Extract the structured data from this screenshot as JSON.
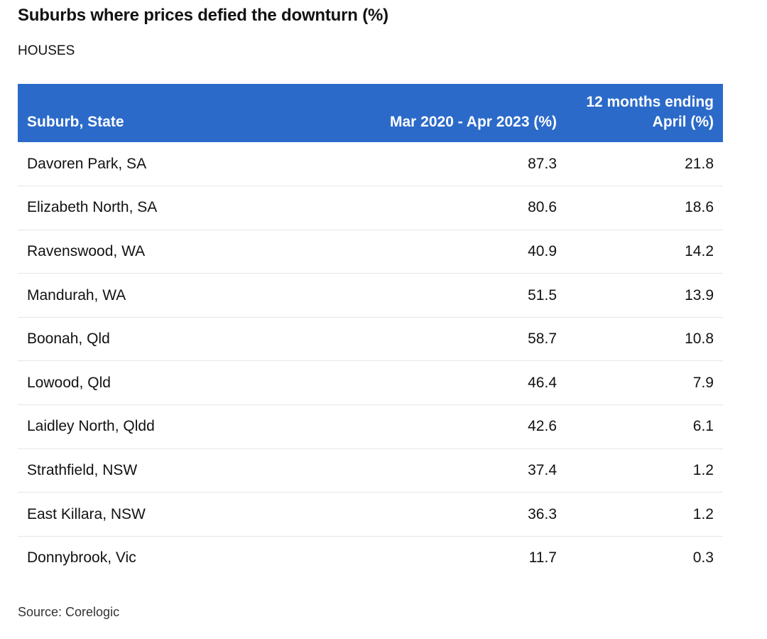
{
  "title": "Suburbs where prices defied the downturn (%)",
  "subtitle": "HOUSES",
  "source": "Source: Corelogic",
  "colors": {
    "header_bg": "#2b6ac9",
    "header_text": "#ffffff",
    "row_divider": "#e6e6e6"
  },
  "chart_data": {
    "type": "table",
    "title": "Suburbs where prices defied the downturn (%)",
    "subtitle": "HOUSES",
    "columns": [
      "Suburb, State",
      "Mar 2020 - Apr 2023 (%)",
      "12 months ending April (%)"
    ],
    "rows": [
      [
        "Davoren Park, SA",
        "87.3",
        "21.8"
      ],
      [
        "Elizabeth North, SA",
        "80.6",
        "18.6"
      ],
      [
        "Ravenswood, WA",
        "40.9",
        "14.2"
      ],
      [
        "Mandurah, WA",
        "51.5",
        "13.9"
      ],
      [
        "Boonah, Qld",
        "58.7",
        "10.8"
      ],
      [
        "Lowood, Qld",
        "46.4",
        "7.9"
      ],
      [
        "Laidley North, Qldd",
        "42.6",
        "6.1"
      ],
      [
        "Strathfield, NSW",
        "37.4",
        "1.2"
      ],
      [
        "East Killara, NSW",
        "36.3",
        "1.2"
      ],
      [
        "Donnybrook, Vic",
        "11.7",
        "0.3"
      ]
    ]
  }
}
